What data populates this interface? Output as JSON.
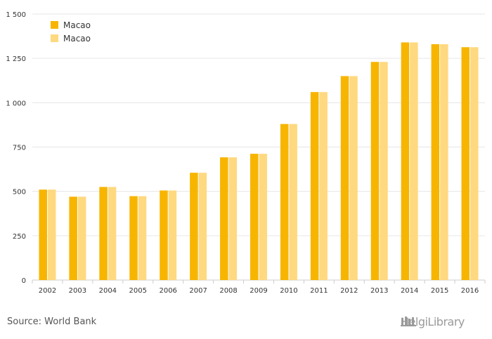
{
  "chart_data": {
    "type": "bar",
    "categories": [
      "2002",
      "2003",
      "2004",
      "2005",
      "2006",
      "2007",
      "2008",
      "2009",
      "2010",
      "2011",
      "2012",
      "2013",
      "2014",
      "2015",
      "2016"
    ],
    "series": [
      {
        "name": "Macao",
        "color": "#f7b500",
        "values": [
          510,
          470,
          525,
          473,
          505,
          605,
          692,
          712,
          880,
          1060,
          1150,
          1230,
          1340,
          1330,
          1313
        ]
      },
      {
        "name": "Macao",
        "color": "#ffd980",
        "values": [
          510,
          470,
          525,
          473,
          505,
          605,
          692,
          712,
          880,
          1060,
          1150,
          1230,
          1340,
          1330,
          1313
        ]
      }
    ],
    "yticks": [
      0,
      250,
      500,
      750,
      1000,
      1250,
      1500
    ],
    "ytick_labels": [
      "0",
      "250",
      "500",
      "750",
      "1 000",
      "1 250",
      "1 500"
    ],
    "ylim": [
      0,
      1500
    ],
    "grid": true,
    "legend": "top-left",
    "title": "",
    "xlabel": "",
    "ylabel": ""
  },
  "footer": {
    "source": "Source: World Bank",
    "brand": "HelgiLibrary"
  }
}
